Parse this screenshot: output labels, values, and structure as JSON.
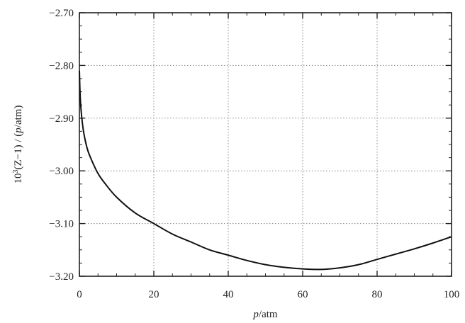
{
  "chart_data": {
    "type": "line",
    "xlabel_italic": "p",
    "xlabel_rest": "/atm",
    "ylabel_prefix": "10",
    "ylabel_sup": "3",
    "ylabel_mid": "(Z−1) / (",
    "ylabel_italic": "p",
    "ylabel_end": "/atm)",
    "xlim": [
      0,
      100
    ],
    "ylim": [
      -3.2,
      -2.7
    ],
    "x_ticks": [
      0,
      20,
      40,
      60,
      80,
      100
    ],
    "x_tick_labels": [
      "0",
      "20",
      "40",
      "60",
      "80",
      "100"
    ],
    "y_ticks": [
      -2.7,
      -2.8,
      -2.9,
      -3.0,
      -3.1,
      -3.2
    ],
    "y_tick_labels": [
      "−2.70",
      "−2.80",
      "−2.90",
      "−3.00",
      "−3.10",
      "−3.20"
    ],
    "grid": true,
    "series": [
      {
        "x": [
          0,
          0.3,
          1,
          2,
          3,
          5,
          7,
          10,
          15,
          20,
          25,
          30,
          35,
          40,
          45,
          50,
          55,
          60,
          65,
          70,
          75,
          80,
          85,
          90,
          95,
          100
        ],
        "y": [
          -2.81,
          -2.87,
          -2.92,
          -2.955,
          -2.975,
          -3.005,
          -3.025,
          -3.05,
          -3.08,
          -3.1,
          -3.12,
          -3.135,
          -3.15,
          -3.16,
          -3.17,
          -3.178,
          -3.183,
          -3.186,
          -3.187,
          -3.184,
          -3.178,
          -3.168,
          -3.158,
          -3.148,
          -3.137,
          -3.125
        ]
      }
    ],
    "colors": {
      "curve": "#111111",
      "grid": "#888888",
      "frame": "#222222"
    }
  }
}
